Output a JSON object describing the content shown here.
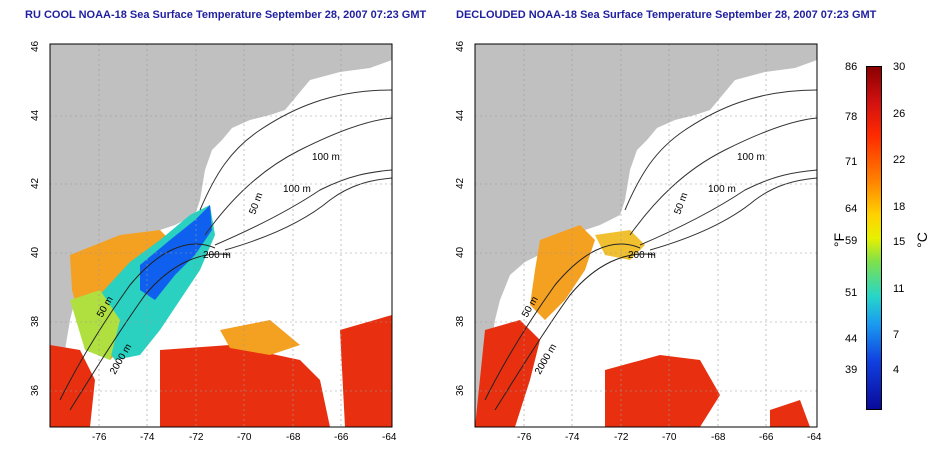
{
  "titles": {
    "left": "RU COOL NOAA-18 Sea Surface Temperature September 28, 2007 07:23 GMT",
    "right": "DECLOUDED NOAA-18 Sea Surface Temperature September 28, 2007 07:23 GMT"
  },
  "map": {
    "lon_ticks": [
      "-76",
      "-74",
      "-72",
      "-70",
      "-68",
      "-66",
      "-64"
    ],
    "lat_ticks": [
      "46",
      "44",
      "42",
      "40",
      "38",
      "36"
    ],
    "contour_labels": [
      "100 m",
      "100 m",
      "50 m",
      "200 m",
      "50 m",
      "2000 m"
    ]
  },
  "colorbar": {
    "fahrenheit_ticks": [
      "86",
      "78",
      "71",
      "64",
      "59",
      "51",
      "44",
      "39"
    ],
    "celsius_ticks": [
      "30",
      "26",
      "22",
      "18",
      "15",
      "11",
      "7",
      "4"
    ],
    "fahrenheit_unit": "°F",
    "celsius_unit": "°C"
  },
  "colors": {
    "land": "#c0c0c0",
    "cloud": "#ffffff",
    "warm": "#e83010",
    "mid": "#f4a020",
    "cool": "#2ad0c0",
    "cold": "#1060f0"
  }
}
